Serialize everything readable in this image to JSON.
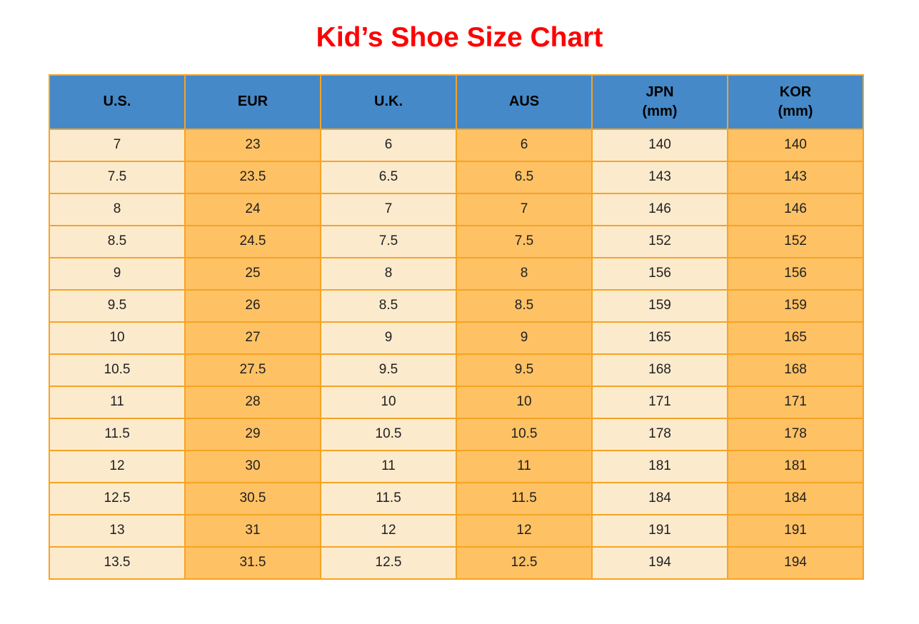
{
  "title": {
    "text": "Kid’s Shoe Size Chart"
  },
  "colors": {
    "title": "#FF0000",
    "header_bg": "#4589C8",
    "cell_light": "#FCEACD",
    "cell_orange": "#FEC164",
    "border": "#F5A423",
    "text": "#1F1F1F"
  },
  "table": {
    "columns": [
      {
        "label": "U.S.",
        "sub": ""
      },
      {
        "label": "EUR",
        "sub": ""
      },
      {
        "label": "U.K.",
        "sub": ""
      },
      {
        "label": "AUS",
        "sub": ""
      },
      {
        "label": "JPN",
        "sub": "(mm)"
      },
      {
        "label": "KOR",
        "sub": "(mm)"
      }
    ],
    "rows": [
      [
        "7",
        "23",
        "6",
        "6",
        "140",
        "140"
      ],
      [
        "7.5",
        "23.5",
        "6.5",
        "6.5",
        "143",
        "143"
      ],
      [
        "8",
        "24",
        "7",
        "7",
        "146",
        "146"
      ],
      [
        "8.5",
        "24.5",
        "7.5",
        "7.5",
        "152",
        "152"
      ],
      [
        "9",
        "25",
        "8",
        "8",
        "156",
        "156"
      ],
      [
        "9.5",
        "26",
        "8.5",
        "8.5",
        "159",
        "159"
      ],
      [
        "10",
        "27",
        "9",
        "9",
        "165",
        "165"
      ],
      [
        "10.5",
        "27.5",
        "9.5",
        "9.5",
        "168",
        "168"
      ],
      [
        "11",
        "28",
        "10",
        "10",
        "171",
        "171"
      ],
      [
        "11.5",
        "29",
        "10.5",
        "10.5",
        "178",
        "178"
      ],
      [
        "12",
        "30",
        "11",
        "11",
        "181",
        "181"
      ],
      [
        "12.5",
        "30.5",
        "11.5",
        "11.5",
        "184",
        "184"
      ],
      [
        "13",
        "31",
        "12",
        "12",
        "191",
        "191"
      ],
      [
        "13.5",
        "31.5",
        "12.5",
        "12.5",
        "194",
        "194"
      ]
    ]
  },
  "chart_data": {
    "type": "table",
    "title": "Kid’s Shoe Size Chart",
    "columns": [
      "U.S.",
      "EUR",
      "U.K.",
      "AUS",
      "JPN (mm)",
      "KOR (mm)"
    ],
    "rows": [
      [
        7,
        23,
        6,
        6,
        140,
        140
      ],
      [
        7.5,
        23.5,
        6.5,
        6.5,
        143,
        143
      ],
      [
        8,
        24,
        7,
        7,
        146,
        146
      ],
      [
        8.5,
        24.5,
        7.5,
        7.5,
        152,
        152
      ],
      [
        9,
        25,
        8,
        8,
        156,
        156
      ],
      [
        9.5,
        26,
        8.5,
        8.5,
        159,
        159
      ],
      [
        10,
        27,
        9,
        9,
        165,
        165
      ],
      [
        10.5,
        27.5,
        9.5,
        9.5,
        168,
        168
      ],
      [
        11,
        28,
        10,
        10,
        171,
        171
      ],
      [
        11.5,
        29,
        10.5,
        10.5,
        178,
        178
      ],
      [
        12,
        30,
        11,
        11,
        181,
        181
      ],
      [
        12.5,
        30.5,
        11.5,
        11.5,
        184,
        184
      ],
      [
        13,
        31,
        12,
        12,
        191,
        191
      ],
      [
        13.5,
        31.5,
        12.5,
        12.5,
        194,
        194
      ]
    ],
    "layout_hints": {
      "header_fill": "#4589C8",
      "odd_column_fill": "#FCEACD",
      "even_column_fill": "#FEC164",
      "grid": "on"
    }
  }
}
